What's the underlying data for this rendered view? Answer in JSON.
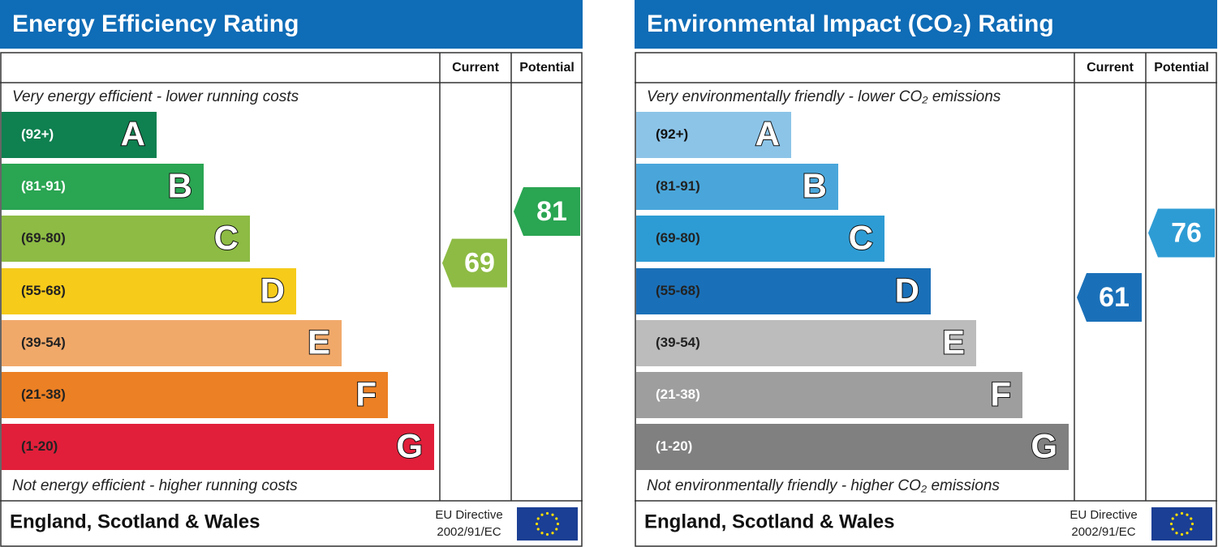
{
  "panels": [
    {
      "title": "Energy Efficiency Rating",
      "columns": [
        "Current",
        "Potential"
      ],
      "top_note": "Very energy efficient - lower running costs",
      "bands": [
        {
          "range": "(92+)",
          "letter": "A",
          "color": "#0f8050",
          "text_color": "#ffffff"
        },
        {
          "range": "(81-91)",
          "letter": "B",
          "color": "#2aa552",
          "text_color": "#ffffff"
        },
        {
          "range": "(69-80)",
          "letter": "C",
          "color": "#8dbb44",
          "text_color": "#222222"
        },
        {
          "range": "(55-68)",
          "letter": "D",
          "color": "#f6cb1a",
          "text_color": "#222222"
        },
        {
          "range": "(39-54)",
          "letter": "E",
          "color": "#f1a96a",
          "text_color": "#222222"
        },
        {
          "range": "(21-38)",
          "letter": "F",
          "color": "#ec8024",
          "text_color": "#222222"
        },
        {
          "range": "(1-20)",
          "letter": "G",
          "color": "#e11f3a",
          "text_color": "#222222"
        }
      ],
      "current": {
        "value": 69,
        "color": "#8dbb44"
      },
      "potential": {
        "value": 81,
        "color": "#2aa552"
      },
      "bottom_note": "Not energy efficient - higher running costs",
      "country": "England, Scotland & Wales",
      "directive": [
        "EU Directive",
        "2002/91/EC"
      ]
    },
    {
      "title": "Environmental Impact (CO₂) Rating",
      "columns": [
        "Current",
        "Potential"
      ],
      "top_note": "Very environmentally friendly - lower CO₂ emissions",
      "bands": [
        {
          "range": "(92+)",
          "letter": "A",
          "color": "#8cc4e8",
          "text_color": "#111111"
        },
        {
          "range": "(81-91)",
          "letter": "B",
          "color": "#4aa6da",
          "text_color": "#222222"
        },
        {
          "range": "(69-80)",
          "letter": "C",
          "color": "#2e9cd4",
          "text_color": "#222222"
        },
        {
          "range": "(55-68)",
          "letter": "D",
          "color": "#1a70b8",
          "text_color": "#222222"
        },
        {
          "range": "(39-54)",
          "letter": "E",
          "color": "#bcbcbc",
          "text_color": "#222222"
        },
        {
          "range": "(21-38)",
          "letter": "F",
          "color": "#9e9e9e",
          "text_color": "#ffffff"
        },
        {
          "range": "(1-20)",
          "letter": "G",
          "color": "#808080",
          "text_color": "#ffffff"
        }
      ],
      "current": {
        "value": 61,
        "color": "#1a70b8"
      },
      "potential": {
        "value": 76,
        "color": "#2e9cd4"
      },
      "bottom_note": "Not environmentally friendly - higher CO₂ emissions",
      "country": "England, Scotland & Wales",
      "directive": [
        "EU Directive",
        "2002/91/EC"
      ]
    }
  ]
}
